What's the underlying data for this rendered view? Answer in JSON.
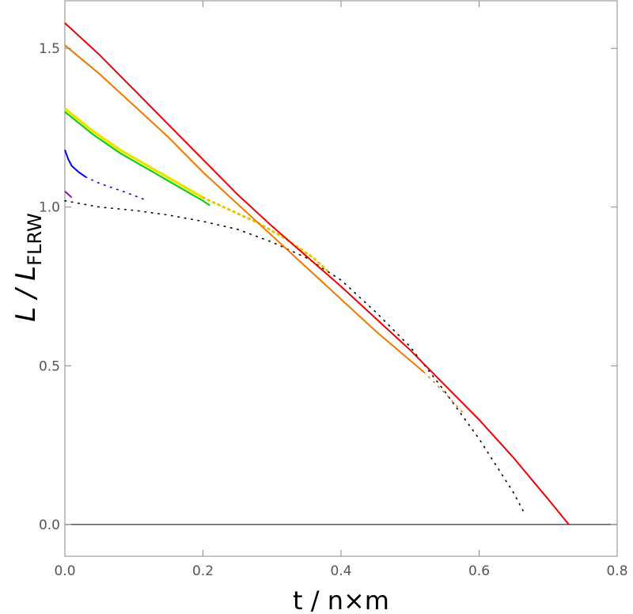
{
  "chart_data": {
    "type": "line",
    "title": "",
    "xlabel": "t / n×m",
    "ylabel_main": "L / L",
    "ylabel_sub": "FLRW",
    "xlim": [
      0,
      0.8
    ],
    "ylim": [
      -0.1,
      1.65
    ],
    "xticks": [
      0.0,
      0.2,
      0.4,
      0.6,
      0.8
    ],
    "xtick_labels": [
      "0.0",
      "0.2",
      "0.4",
      "0.6",
      "0.8"
    ],
    "yticks": [
      0.0,
      0.5,
      1.0,
      1.5
    ],
    "ytick_labels": [
      "0.0",
      "0.5",
      "1.0",
      "1.5"
    ],
    "grid": false,
    "zero_line": true,
    "series": [
      {
        "color": "#000000",
        "style": "dotted",
        "x": [
          0.0,
          0.05,
          0.1,
          0.15,
          0.2,
          0.25,
          0.3,
          0.35,
          0.4,
          0.45,
          0.5,
          0.55,
          0.6,
          0.65,
          0.667
        ],
        "y": [
          1.02,
          1.0,
          0.99,
          0.975,
          0.955,
          0.93,
          0.89,
          0.84,
          0.77,
          0.67,
          0.56,
          0.42,
          0.27,
          0.1,
          0.03
        ]
      },
      {
        "color": "#7b1fa2",
        "style": "solid",
        "x": [
          0.0,
          0.005,
          0.01
        ],
        "y": [
          1.05,
          1.04,
          1.03
        ]
      },
      {
        "color": "#0000ee",
        "style": "solid",
        "x": [
          0.0,
          0.005,
          0.01,
          0.02,
          0.03
        ],
        "y": [
          1.18,
          1.15,
          1.13,
          1.11,
          1.095
        ]
      },
      {
        "color": "#0000ee",
        "style": "dotted",
        "x": [
          0.03,
          0.05,
          0.07,
          0.09,
          0.12
        ],
        "y": [
          1.095,
          1.075,
          1.06,
          1.045,
          1.02
        ]
      },
      {
        "color": "#00cc00",
        "style": "solid",
        "x": [
          0.0,
          0.02,
          0.04,
          0.06,
          0.08,
          0.1,
          0.12,
          0.14,
          0.16,
          0.18,
          0.2,
          0.21
        ],
        "y": [
          1.3,
          1.265,
          1.23,
          1.2,
          1.17,
          1.145,
          1.12,
          1.095,
          1.07,
          1.045,
          1.02,
          1.005
        ]
      },
      {
        "color": "#e6e600",
        "style": "solid",
        "width": 3.5,
        "x": [
          0.0,
          0.02,
          0.04,
          0.06,
          0.08,
          0.1,
          0.12,
          0.14,
          0.16,
          0.18,
          0.2
        ],
        "y": [
          1.31,
          1.275,
          1.24,
          1.21,
          1.18,
          1.155,
          1.13,
          1.105,
          1.08,
          1.055,
          1.03
        ]
      },
      {
        "color": "#e6c800",
        "style": "dotted",
        "width": 3,
        "x": [
          0.2,
          0.24,
          0.28,
          0.32,
          0.36,
          0.38
        ],
        "y": [
          1.03,
          0.99,
          0.95,
          0.9,
          0.84,
          0.8
        ]
      },
      {
        "color": "#f07800",
        "style": "solid",
        "x": [
          0.0,
          0.05,
          0.1,
          0.15,
          0.2,
          0.25,
          0.3,
          0.35,
          0.4,
          0.45,
          0.52
        ],
        "y": [
          1.51,
          1.42,
          1.32,
          1.22,
          1.11,
          1.01,
          0.91,
          0.81,
          0.71,
          0.61,
          0.48
        ]
      },
      {
        "color": "#f07800",
        "style": "dotted",
        "x": [
          0.52,
          0.55,
          0.58
        ],
        "y": [
          0.48,
          0.415,
          0.345
        ]
      },
      {
        "color": "#ee0000",
        "style": "solid",
        "x": [
          0.0,
          0.05,
          0.1,
          0.15,
          0.2,
          0.25,
          0.3,
          0.35,
          0.4,
          0.45,
          0.5,
          0.55,
          0.6,
          0.65,
          0.7,
          0.73
        ],
        "y": [
          1.58,
          1.48,
          1.37,
          1.26,
          1.15,
          1.04,
          0.94,
          0.845,
          0.75,
          0.65,
          0.55,
          0.44,
          0.33,
          0.21,
          0.08,
          0.0
        ]
      }
    ]
  }
}
